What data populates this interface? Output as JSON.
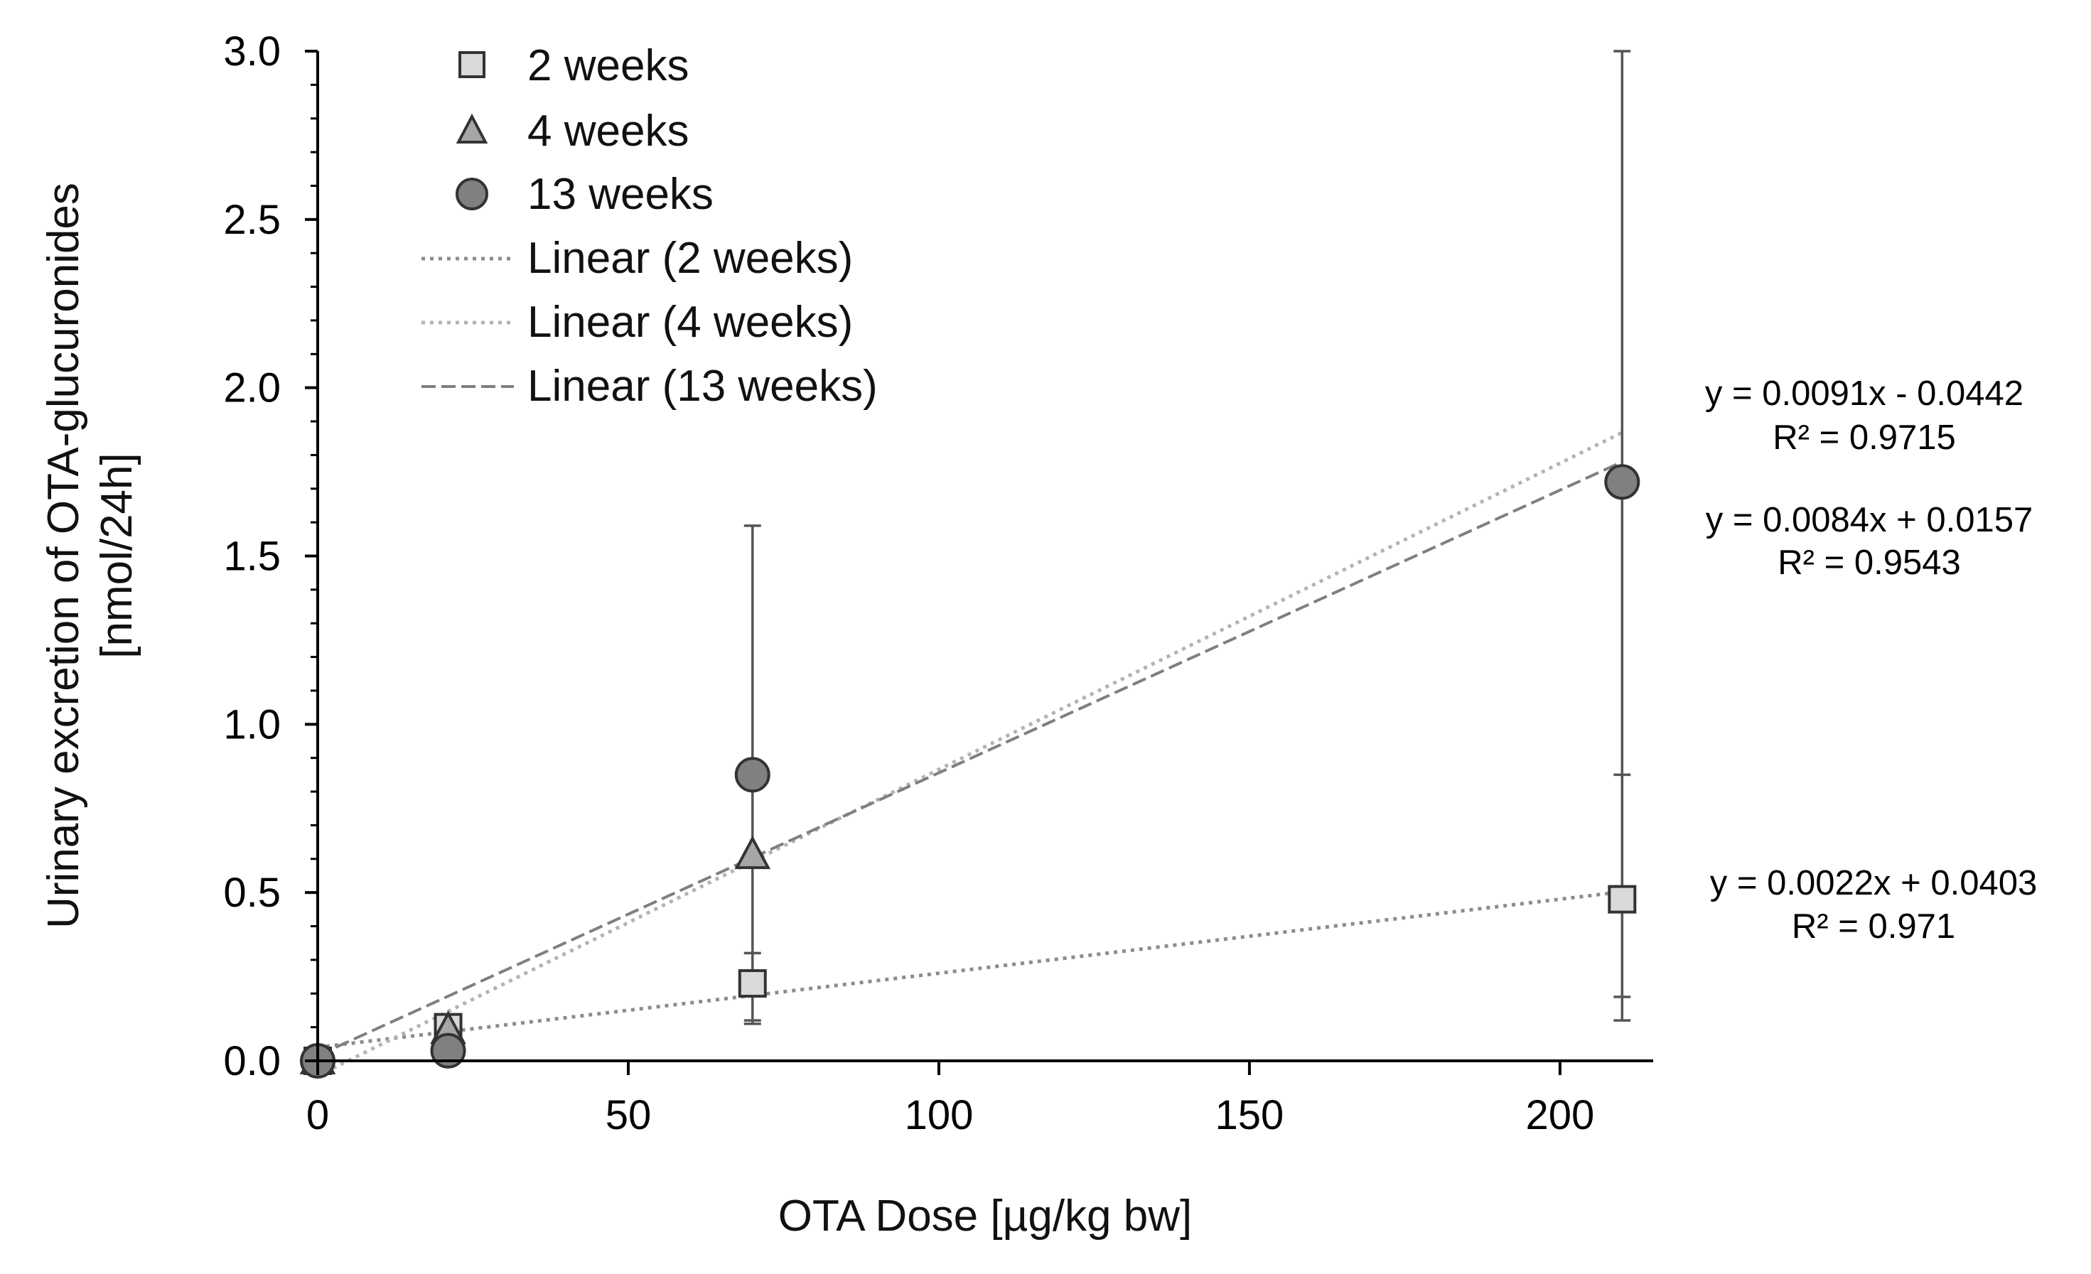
{
  "chart_data": {
    "type": "scatter",
    "title": "",
    "xlabel": "OTA Dose [µg/kg bw]",
    "ylabel_lines": [
      "Urinary excretion of OTA-glucuronides",
      "[nmol/24h]"
    ],
    "xlim": [
      0,
      215
    ],
    "ylim": [
      0,
      3.0
    ],
    "x_ticks": [
      0,
      50,
      100,
      150,
      200
    ],
    "x_tick_labels": [
      "0",
      "50",
      "100",
      "150",
      "200"
    ],
    "y_ticks": [
      0,
      0.5,
      1.0,
      1.5,
      2.0,
      2.5,
      3.0
    ],
    "y_tick_labels": [
      "0.0",
      "0.5",
      "1.0",
      "1.5",
      "2.0",
      "2.5",
      "3.0"
    ],
    "legend_position": "top-left",
    "series": [
      {
        "name": "2 weeks",
        "marker": "square",
        "color": "#d9d9d9",
        "x": [
          0,
          21,
          70,
          210
        ],
        "y": [
          0.0,
          0.1,
          0.23,
          0.48
        ],
        "err_low": [
          0.0,
          0.0,
          0.11,
          0.29
        ],
        "err_high": [
          0.0,
          0.0,
          0.09,
          0.37
        ],
        "trendline": {
          "label": "Linear (2 weeks)",
          "slope": 0.0022,
          "intercept": 0.0403,
          "style": "dotted",
          "color": "#8c8c8c",
          "equation": "y = 0.0022x + 0.0403",
          "r2": "R² = 0.971"
        }
      },
      {
        "name": "4 weeks",
        "marker": "triangle",
        "color": "#a6a6a6",
        "x": [
          0,
          21,
          70
        ],
        "y": [
          0.0,
          0.09,
          0.61
        ],
        "err_low": [
          0.0,
          0.0,
          0.5
        ],
        "err_high": [
          0.0,
          0.0,
          0.98
        ],
        "trendline": {
          "label": "Linear (4 weeks)",
          "slope": 0.0091,
          "intercept": -0.0442,
          "style": "dotted",
          "color": "#b3b3b3",
          "equation": "y = 0.0091x - 0.0442",
          "r2": "R² = 0.9715"
        }
      },
      {
        "name": "13 weeks",
        "marker": "circle",
        "color": "#808080",
        "x": [
          0,
          21,
          70,
          210
        ],
        "y": [
          0.0,
          0.03,
          0.85,
          1.72
        ],
        "err_low": [
          0.0,
          0.0,
          0.0,
          1.6
        ],
        "err_high": [
          0.0,
          0.0,
          0.0,
          1.28
        ],
        "trendline": {
          "label": "Linear (13 weeks)",
          "slope": 0.0084,
          "intercept": 0.0157,
          "style": "dashed",
          "color": "#7f7f7f",
          "equation": "y = 0.0084x + 0.0157",
          "r2": "R² = 0.9543"
        }
      }
    ]
  }
}
